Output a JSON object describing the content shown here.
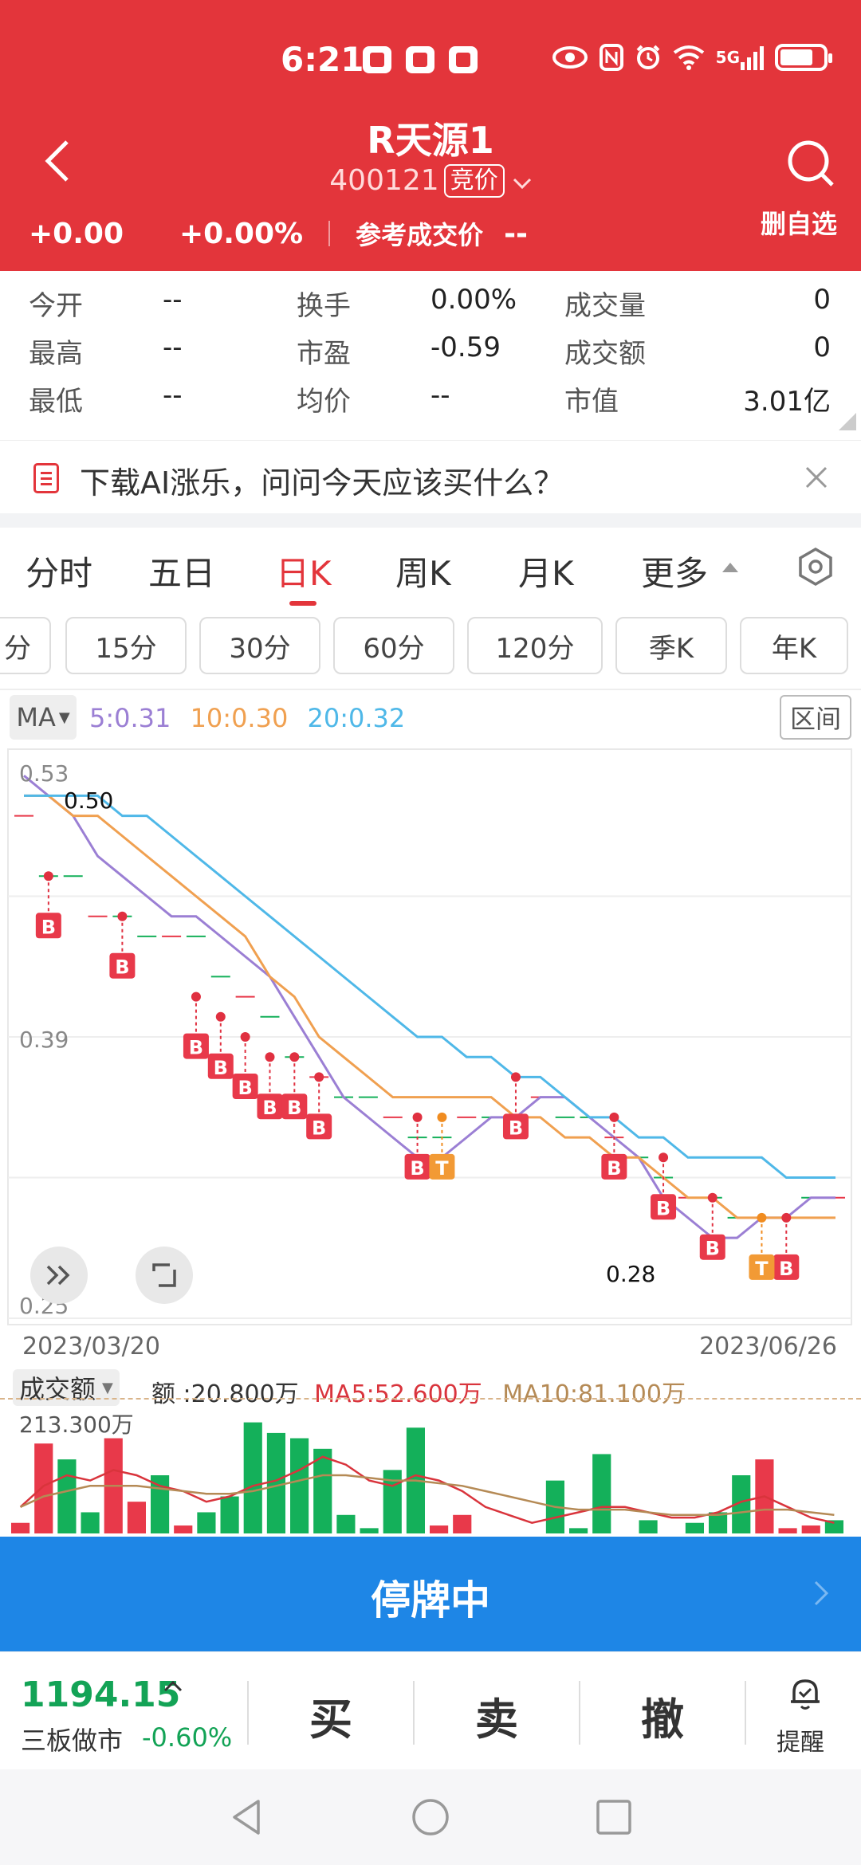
{
  "status_bar": {
    "time": "6:21",
    "icons": [
      "app-notification-icon",
      "huawei-app-icon",
      "app-notification-icon",
      "eye-icon",
      "nfc-icon",
      "alarm-icon",
      "wifi-icon",
      "5g-signal-icon",
      "battery-icon"
    ],
    "network_label": "5G"
  },
  "header": {
    "title": "R天源1",
    "code": "400121",
    "auction_tag": "竞价",
    "delete_label": "删自选",
    "change": "+0.00",
    "change_pct": "+0.00%",
    "ref_price_label": "参考成交价",
    "ref_price_value": "--"
  },
  "quote": {
    "rows": [
      [
        {
          "label": "今开",
          "value": "--"
        },
        {
          "label": "换手",
          "value": "0.00%"
        },
        {
          "label": "成交量",
          "value": "0"
        }
      ],
      [
        {
          "label": "最高",
          "value": "--"
        },
        {
          "label": "市盈",
          "value": "-0.59"
        },
        {
          "label": "成交额",
          "value": "0"
        }
      ],
      [
        {
          "label": "最低",
          "value": "--"
        },
        {
          "label": "均价",
          "value": "--"
        },
        {
          "label": "市值",
          "value": "3.01亿"
        }
      ]
    ]
  },
  "ai_banner": {
    "text": "下载AI涨乐，问问今天应该买什么？"
  },
  "tabs": {
    "items": [
      "分时",
      "五日",
      "日K",
      "周K",
      "月K",
      "更多"
    ],
    "active_index": 2
  },
  "subtabs": {
    "items": [
      "分",
      "15分",
      "30分",
      "60分",
      "120分",
      "季K",
      "年K"
    ]
  },
  "ma": {
    "selector": "MA",
    "ma5": "5:0.31",
    "ma10": "10:0.30",
    "ma20": "20:0.32",
    "range_button": "区间",
    "colors": {
      "ma5": "#9b7fd4",
      "ma10": "#f0a050",
      "ma20": "#4fb8e8"
    }
  },
  "kline": {
    "y_labels": [
      "0.53",
      "0.39",
      "0.25"
    ],
    "high_label": "0.50",
    "low_label": "0.28",
    "start_date": "2023/03/20",
    "end_date": "2023/06/26",
    "buy_marker": "B",
    "t_marker": "T"
  },
  "volume": {
    "selector": "成交额",
    "amount": "额 :20.800万",
    "ma5": "MA5:52.600万",
    "ma10": "MA10:81.100万",
    "max_label": "213.300万",
    "colors": {
      "up": "#e8394a",
      "down": "#14b05a",
      "ma5": "#d9343c",
      "ma10": "#b58a55"
    }
  },
  "halt": {
    "text": "停牌中"
  },
  "trade": {
    "index_value": "1194.15",
    "index_name": "三板做市",
    "index_pct": "-0.60%",
    "buy": "买",
    "sell": "卖",
    "cancel": "撤",
    "alert": "提醒"
  },
  "chart_data": {
    "type": "line",
    "x_range": [
      "2023/03/20",
      "2023/06/26"
    ],
    "ylim": [
      0.25,
      0.53
    ],
    "y_ticks": [
      0.53,
      0.39,
      0.25
    ],
    "grid": true,
    "series": [
      {
        "name": "5",
        "color": "#9b7fd4",
        "values": [
          0.52,
          0.51,
          0.5,
          0.48,
          0.47,
          0.46,
          0.45,
          0.45,
          0.44,
          0.43,
          0.42,
          0.4,
          0.38,
          0.36,
          0.35,
          0.34,
          0.33,
          0.33,
          0.34,
          0.35,
          0.35,
          0.36,
          0.36,
          0.35,
          0.34,
          0.33,
          0.31,
          0.3,
          0.29,
          0.29,
          0.3,
          0.3,
          0.31,
          0.31
        ]
      },
      {
        "name": "10",
        "color": "#f0a050",
        "values": [
          0.51,
          0.51,
          0.5,
          0.5,
          0.49,
          0.48,
          0.47,
          0.46,
          0.45,
          0.44,
          0.42,
          0.41,
          0.39,
          0.38,
          0.37,
          0.36,
          0.36,
          0.36,
          0.36,
          0.36,
          0.35,
          0.35,
          0.34,
          0.34,
          0.33,
          0.33,
          0.32,
          0.31,
          0.31,
          0.3,
          0.3,
          0.3,
          0.3,
          0.3
        ]
      },
      {
        "name": "20",
        "color": "#4fb8e8",
        "values": [
          0.51,
          0.51,
          0.51,
          0.51,
          0.5,
          0.5,
          0.49,
          0.48,
          0.47,
          0.46,
          0.45,
          0.44,
          0.43,
          0.42,
          0.41,
          0.4,
          0.39,
          0.39,
          0.38,
          0.38,
          0.37,
          0.37,
          0.36,
          0.35,
          0.35,
          0.34,
          0.34,
          0.33,
          0.33,
          0.33,
          0.33,
          0.32,
          0.32,
          0.32
        ]
      }
    ],
    "candles": [
      0.5,
      0.47,
      0.47,
      0.45,
      0.45,
      0.44,
      0.44,
      0.44,
      0.42,
      0.41,
      0.4,
      0.38,
      0.37,
      0.36,
      0.36,
      0.35,
      0.34,
      0.34,
      0.35,
      0.35,
      0.35,
      0.36,
      0.35,
      0.35,
      0.34,
      0.33,
      0.32,
      0.31,
      0.31,
      0.3,
      0.3,
      0.3,
      0.31,
      0.31
    ],
    "buy_signals": [
      {
        "i": 1,
        "v": 0.47
      },
      {
        "i": 4,
        "v": 0.45
      },
      {
        "i": 7,
        "v": 0.41
      },
      {
        "i": 8,
        "v": 0.4
      },
      {
        "i": 9,
        "v": 0.39
      },
      {
        "i": 10,
        "v": 0.38
      },
      {
        "i": 11,
        "v": 0.38
      },
      {
        "i": 12,
        "v": 0.37
      },
      {
        "i": 16,
        "v": 0.35
      },
      {
        "i": 20,
        "v": 0.37
      },
      {
        "i": 24,
        "v": 0.35
      },
      {
        "i": 26,
        "v": 0.33
      },
      {
        "i": 28,
        "v": 0.31
      },
      {
        "i": 31,
        "v": 0.3
      }
    ],
    "t_signals": [
      {
        "i": 17,
        "v": 0.35
      },
      {
        "i": 30,
        "v": 0.3
      }
    ],
    "volume_bars": [
      {
        "v": 0.2,
        "up": true
      },
      {
        "v": 1.7,
        "up": true
      },
      {
        "v": 1.4,
        "up": false
      },
      {
        "v": 0.4,
        "up": false
      },
      {
        "v": 1.8,
        "up": true
      },
      {
        "v": 0.6,
        "up": true
      },
      {
        "v": 1.1,
        "up": false
      },
      {
        "v": 0.15,
        "up": true
      },
      {
        "v": 0.4,
        "up": false
      },
      {
        "v": 0.7,
        "up": false
      },
      {
        "v": 2.1,
        "up": false
      },
      {
        "v": 1.9,
        "up": false
      },
      {
        "v": 1.8,
        "up": false
      },
      {
        "v": 1.6,
        "up": false
      },
      {
        "v": 0.35,
        "up": false
      },
      {
        "v": 0.1,
        "up": false
      },
      {
        "v": 1.2,
        "up": false
      },
      {
        "v": 2.0,
        "up": false
      },
      {
        "v": 0.15,
        "up": true
      },
      {
        "v": 0.35,
        "up": true
      },
      {
        "v": 0.0,
        "up": true
      },
      {
        "v": 0.0,
        "up": false
      },
      {
        "v": 0.0,
        "up": false
      },
      {
        "v": 1.0,
        "up": false
      },
      {
        "v": 0.1,
        "up": false
      },
      {
        "v": 1.5,
        "up": false
      },
      {
        "v": 0.0,
        "up": false
      },
      {
        "v": 0.25,
        "up": false
      },
      {
        "v": 0.0,
        "up": false
      },
      {
        "v": 0.2,
        "up": false
      },
      {
        "v": 0.4,
        "up": false
      },
      {
        "v": 1.1,
        "up": false
      },
      {
        "v": 1.4,
        "up": true
      },
      {
        "v": 0.1,
        "up": true
      },
      {
        "v": 0.15,
        "up": true
      },
      {
        "v": 0.25,
        "up": false
      }
    ],
    "volume_ma5": [
      0.5,
      0.9,
      1.1,
      1.0,
      1.2,
      1.1,
      0.9,
      0.8,
      0.6,
      0.7,
      0.9,
      1.0,
      1.2,
      1.45,
      1.3,
      1.0,
      0.9,
      1.1,
      1.0,
      0.8,
      0.5,
      0.35,
      0.2,
      0.3,
      0.4,
      0.5,
      0.5,
      0.4,
      0.3,
      0.3,
      0.4,
      0.6,
      0.7,
      0.5,
      0.3,
      0.2
    ],
    "volume_ma10": [
      0.5,
      0.7,
      0.8,
      0.9,
      0.9,
      0.9,
      0.85,
      0.8,
      0.75,
      0.75,
      0.8,
      0.9,
      1.0,
      1.1,
      1.1,
      1.05,
      1.0,
      1.0,
      0.95,
      0.9,
      0.8,
      0.7,
      0.6,
      0.5,
      0.45,
      0.45,
      0.45,
      0.4,
      0.35,
      0.35,
      0.35,
      0.4,
      0.45,
      0.45,
      0.4,
      0.35
    ]
  }
}
